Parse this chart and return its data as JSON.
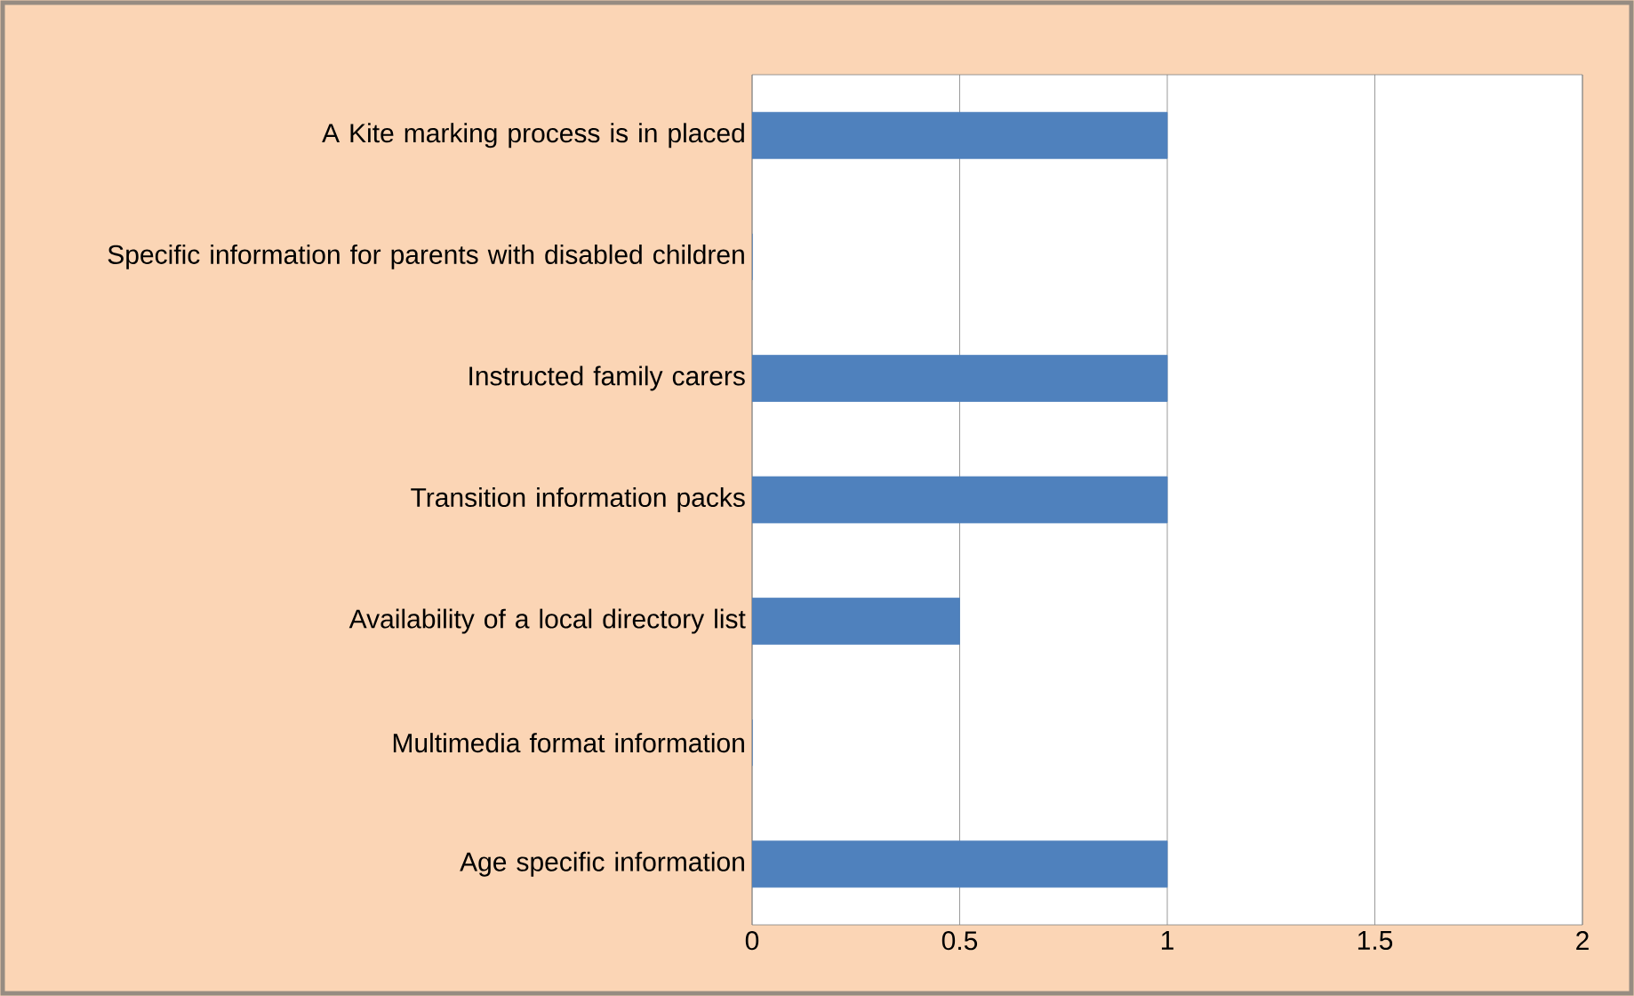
{
  "chart_data": {
    "type": "bar",
    "orientation": "horizontal",
    "categories": [
      "A Kite marking process is in placed",
      "Specific information for parents with disabled children",
      "Instructed family carers",
      "Transition information packs",
      "Availability of a local directory list",
      "Multimedia format information",
      "Age specific information"
    ],
    "values": [
      1,
      0,
      1,
      1,
      0.5,
      0,
      1
    ],
    "color": "#4f81bd",
    "xlim": [
      0,
      2
    ],
    "xticks": [
      0,
      0.5,
      1,
      1.5,
      2
    ],
    "grid": "x"
  }
}
